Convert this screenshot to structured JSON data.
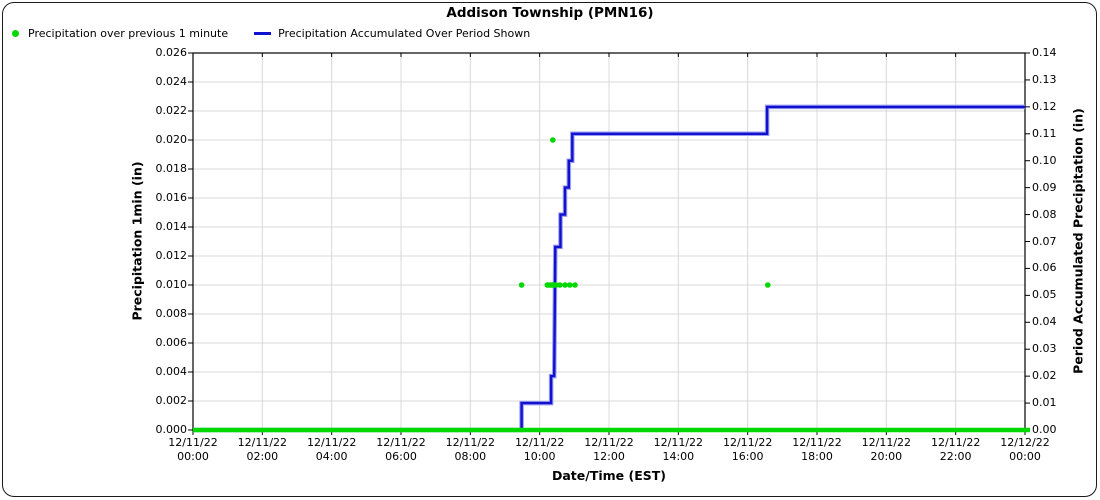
{
  "chart_data": {
    "type": "line",
    "title": "Addison Township (PMN16)",
    "xlabel": "Date/Time (EST)",
    "ylabel_left": "Precipitation 1min (in)",
    "ylabel_right": "Period Accumulated Precipitation (in)",
    "legend_position": "top-left",
    "grid": true,
    "colors": {
      "precip_dots": "#00d900",
      "accum_line": "#1111d0",
      "baseline": "#00d900",
      "gridline": "#d8d8d8",
      "axis": "#000000"
    },
    "x_axis": {
      "range_hours": [
        0,
        24
      ],
      "tick_step_hours": 2,
      "tick_labels": [
        {
          "date": "12/11/22",
          "time": "00:00"
        },
        {
          "date": "12/11/22",
          "time": "02:00"
        },
        {
          "date": "12/11/22",
          "time": "04:00"
        },
        {
          "date": "12/11/22",
          "time": "06:00"
        },
        {
          "date": "12/11/22",
          "time": "08:00"
        },
        {
          "date": "12/11/22",
          "time": "10:00"
        },
        {
          "date": "12/11/22",
          "time": "12:00"
        },
        {
          "date": "12/11/22",
          "time": "14:00"
        },
        {
          "date": "12/11/22",
          "time": "16:00"
        },
        {
          "date": "12/11/22",
          "time": "18:00"
        },
        {
          "date": "12/11/22",
          "time": "20:00"
        },
        {
          "date": "12/11/22",
          "time": "22:00"
        },
        {
          "date": "12/12/22",
          "time": "00:00"
        }
      ]
    },
    "y_left": {
      "min": 0.0,
      "max": 0.026,
      "step": 0.002,
      "tick_labels": [
        "0.000",
        "0.002",
        "0.004",
        "0.006",
        "0.008",
        "0.010",
        "0.012",
        "0.014",
        "0.016",
        "0.018",
        "0.020",
        "0.022",
        "0.024",
        "0.026"
      ]
    },
    "y_right": {
      "min": 0.0,
      "max": 0.14,
      "step": 0.01,
      "tick_labels": [
        "0.00",
        "0.01",
        "0.02",
        "0.03",
        "0.04",
        "0.05",
        "0.06",
        "0.07",
        "0.08",
        "0.09",
        "0.10",
        "0.11",
        "0.12",
        "0.13",
        "0.14"
      ]
    },
    "series": [
      {
        "name": "Precipitation over previous 1 minute",
        "type": "scatter",
        "axis": "left",
        "color": "#00d900",
        "baseline_zero_line": true,
        "points_hours_value": [
          [
            9.48,
            0.01
          ],
          [
            10.22,
            0.01
          ],
          [
            10.27,
            0.01
          ],
          [
            10.32,
            0.01
          ],
          [
            10.37,
            0.01
          ],
          [
            10.42,
            0.01
          ],
          [
            10.47,
            0.01
          ],
          [
            10.38,
            0.02
          ],
          [
            10.58,
            0.01
          ],
          [
            10.73,
            0.01
          ],
          [
            10.87,
            0.01
          ],
          [
            11.02,
            0.01
          ],
          [
            16.58,
            0.01
          ]
        ]
      },
      {
        "name": "Precipitation Accumulated Over Period Shown",
        "type": "step-line",
        "axis": "right",
        "color": "#1111d0",
        "points_hours_value": [
          [
            0,
            0.0
          ],
          [
            9.48,
            0.0
          ],
          [
            9.48,
            0.01
          ],
          [
            10.33,
            0.01
          ],
          [
            10.33,
            0.02
          ],
          [
            10.42,
            0.02
          ],
          [
            10.45,
            0.068
          ],
          [
            10.6,
            0.068
          ],
          [
            10.6,
            0.08
          ],
          [
            10.73,
            0.08
          ],
          [
            10.73,
            0.09
          ],
          [
            10.84,
            0.09
          ],
          [
            10.84,
            0.1
          ],
          [
            10.94,
            0.1
          ],
          [
            10.94,
            0.11
          ],
          [
            16.56,
            0.11
          ],
          [
            16.56,
            0.12
          ],
          [
            24,
            0.12
          ]
        ]
      }
    ]
  }
}
